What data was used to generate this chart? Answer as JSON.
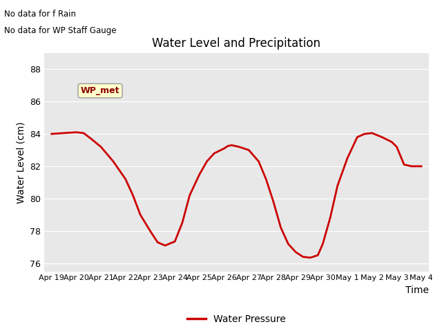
{
  "title": "Water Level and Precipitation",
  "ylabel": "Water Level (cm)",
  "xlabel": "Time",
  "legend_label": "Water Pressure",
  "note_line1": "No data for f Rain",
  "note_line2": "No data for WP Staff Gauge",
  "wp_met_label": "WP_met",
  "line_color": "#cc0000",
  "line_width": 2.0,
  "bg_color": "#e8e8e8",
  "ylim": [
    75.5,
    89.0
  ],
  "yticks": [
    76,
    78,
    80,
    82,
    84,
    86,
    88
  ],
  "x_vals": [
    0,
    0.5,
    1.0,
    1.3,
    1.6,
    2.0,
    2.5,
    3.0,
    3.3,
    3.6,
    4.0,
    4.3,
    4.6,
    5.0,
    5.3,
    5.6,
    6.0,
    6.3,
    6.6,
    7.0,
    7.15,
    7.3,
    7.6,
    8.0,
    8.4,
    8.7,
    9.0,
    9.3,
    9.6,
    9.9,
    10.2,
    10.5,
    10.8,
    11.0,
    11.3,
    11.6,
    12.0,
    12.4,
    12.7,
    13.0,
    13.4,
    13.8,
    14.0,
    14.3,
    14.6,
    15.0
  ],
  "y_vals": [
    84.0,
    84.05,
    84.1,
    84.05,
    83.7,
    83.2,
    82.3,
    81.2,
    80.2,
    79.0,
    78.0,
    77.3,
    77.1,
    77.35,
    78.5,
    80.2,
    81.5,
    82.3,
    82.8,
    83.1,
    83.25,
    83.3,
    83.2,
    83.0,
    82.3,
    81.2,
    79.8,
    78.2,
    77.2,
    76.7,
    76.4,
    76.35,
    76.5,
    77.2,
    78.8,
    80.8,
    82.5,
    83.8,
    84.0,
    84.05,
    83.8,
    83.5,
    83.2,
    82.1,
    82.0,
    82.0
  ],
  "xtick_pos": [
    0,
    1,
    2,
    3,
    4,
    5,
    6,
    7,
    8,
    9,
    10,
    11,
    12,
    13,
    14,
    15
  ],
  "xtick_labels": [
    "Apr 19",
    "Apr 20",
    "Apr 21",
    "Apr 22",
    "Apr 23",
    "Apr 24",
    "Apr 25",
    "Apr 26",
    "Apr 27",
    "Apr 28",
    "Apr 29",
    "Apr 30",
    "May 1",
    "May 2",
    "May 3",
    "May 4"
  ]
}
